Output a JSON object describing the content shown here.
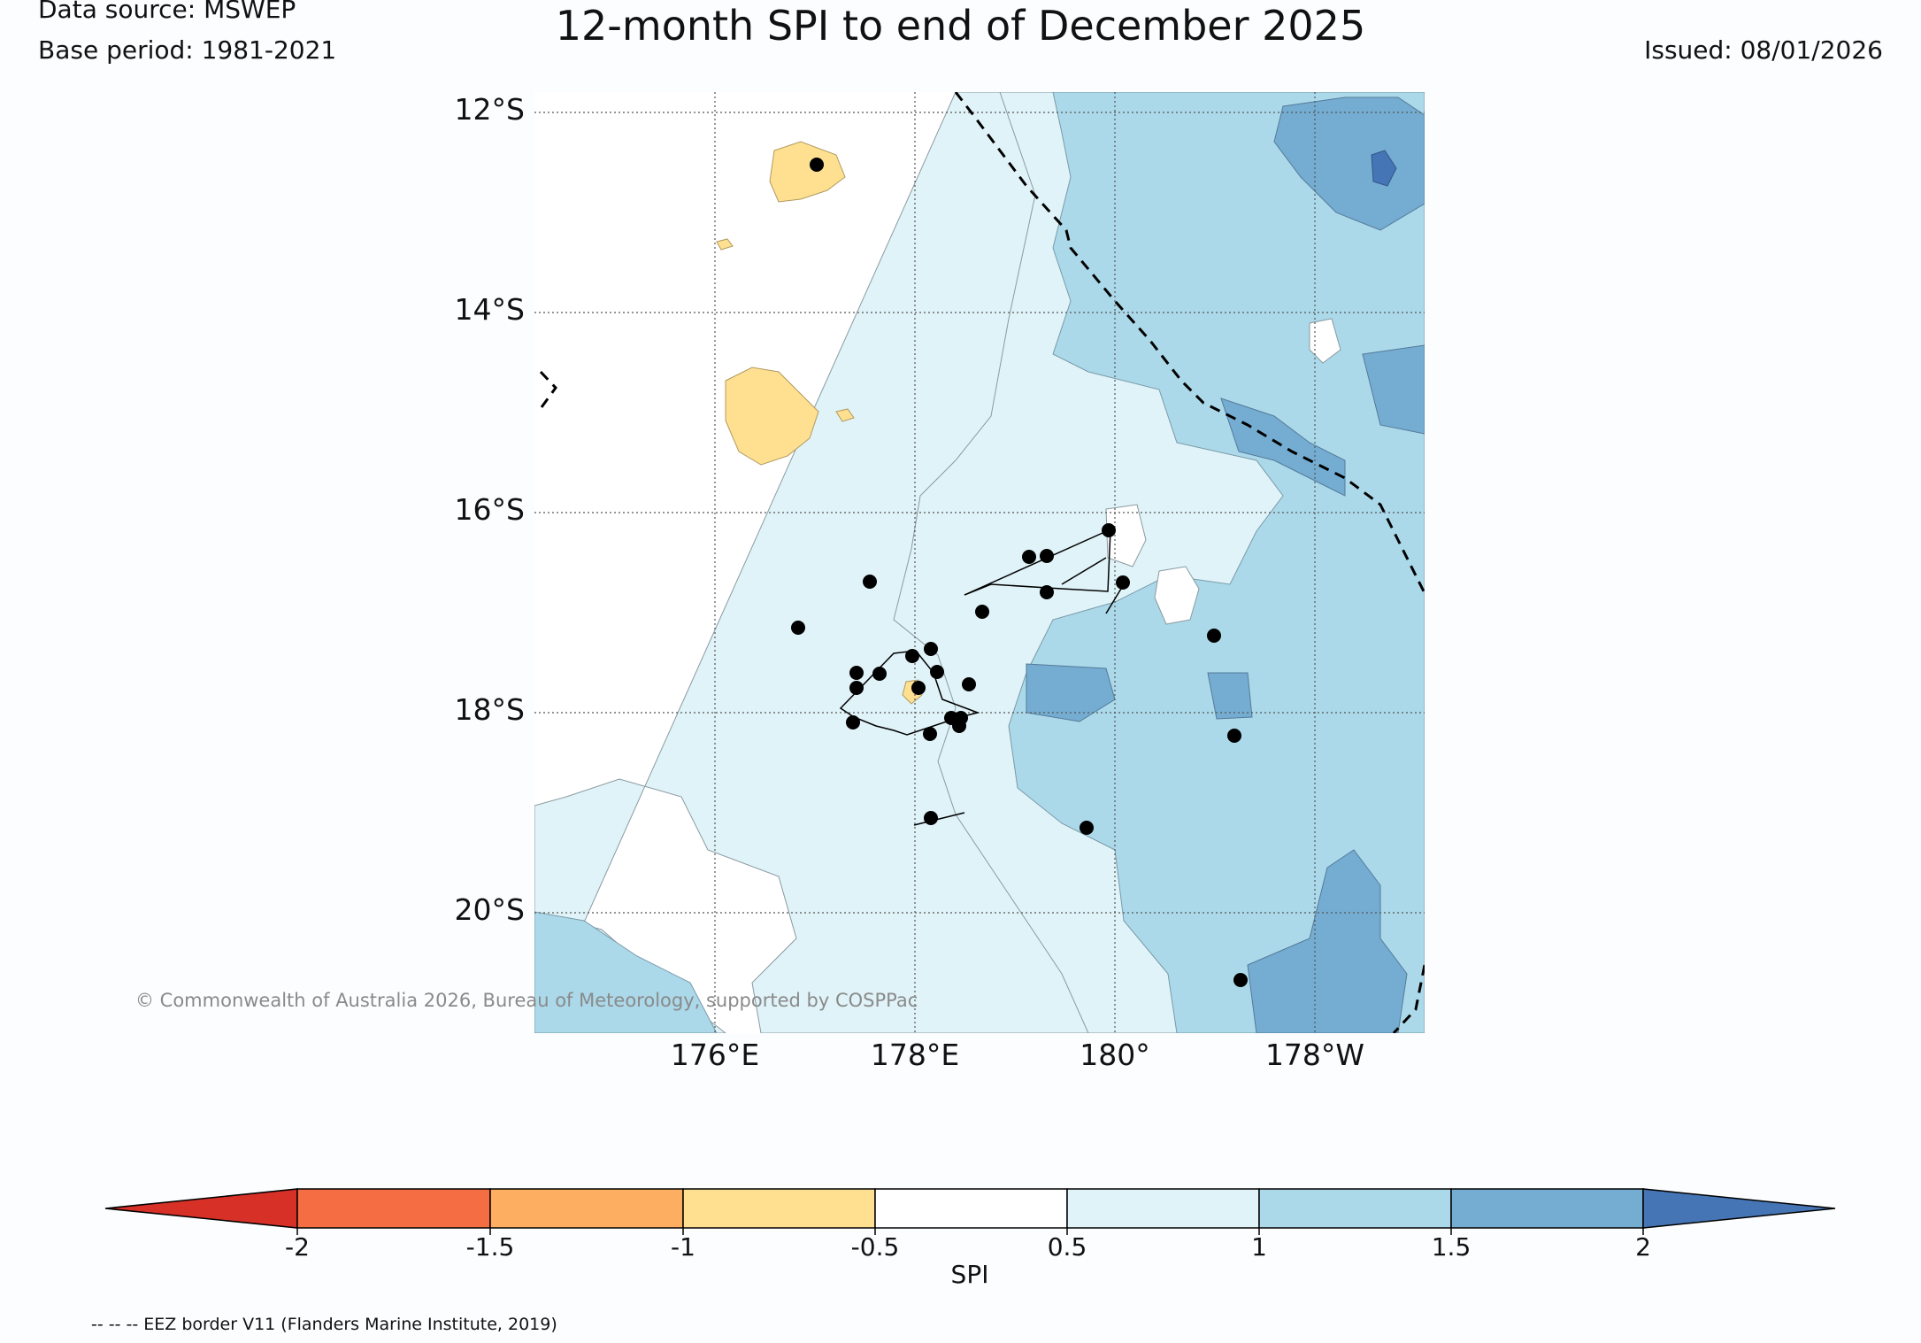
{
  "header": {
    "data_source": "Data source: MSWEP",
    "base_period": "Base period: 1981-2021",
    "title": "12-month SPI to end of December 2025",
    "issued": "Issued: 08/01/2026"
  },
  "map": {
    "latitude_labels": [
      "12°S",
      "14°S",
      "16°S",
      "18°S",
      "20°S"
    ],
    "longitude_labels": [
      "176°E",
      "178°E",
      "180°",
      "178°W"
    ],
    "copyright": "© Commonwealth of Australia 2026, Bureau of Meteorology, supported by COSPPac",
    "legend_note": "-- -- -- EEZ border V11 (Flanders Marine Institute, 2019)"
  },
  "colorbar": {
    "title": "SPI",
    "tick_labels": [
      "-2",
      "-1.5",
      "-1",
      "-0.5",
      "0.5",
      "1",
      "1.5",
      "2"
    ],
    "colors": {
      "below_min": "#d73027",
      "minus2_to_minus1_5": "#f46d43",
      "minus1_5_to_minus1": "#fdae61",
      "minus1_to_minus0_5": "#fee090",
      "neutral": "#ffffff",
      "p0_5_to_1": "#e0f3f8",
      "p1_to_1_5": "#abd9e9",
      "p1_5_to_2": "#74add1",
      "above_max": "#4575b4"
    }
  }
}
